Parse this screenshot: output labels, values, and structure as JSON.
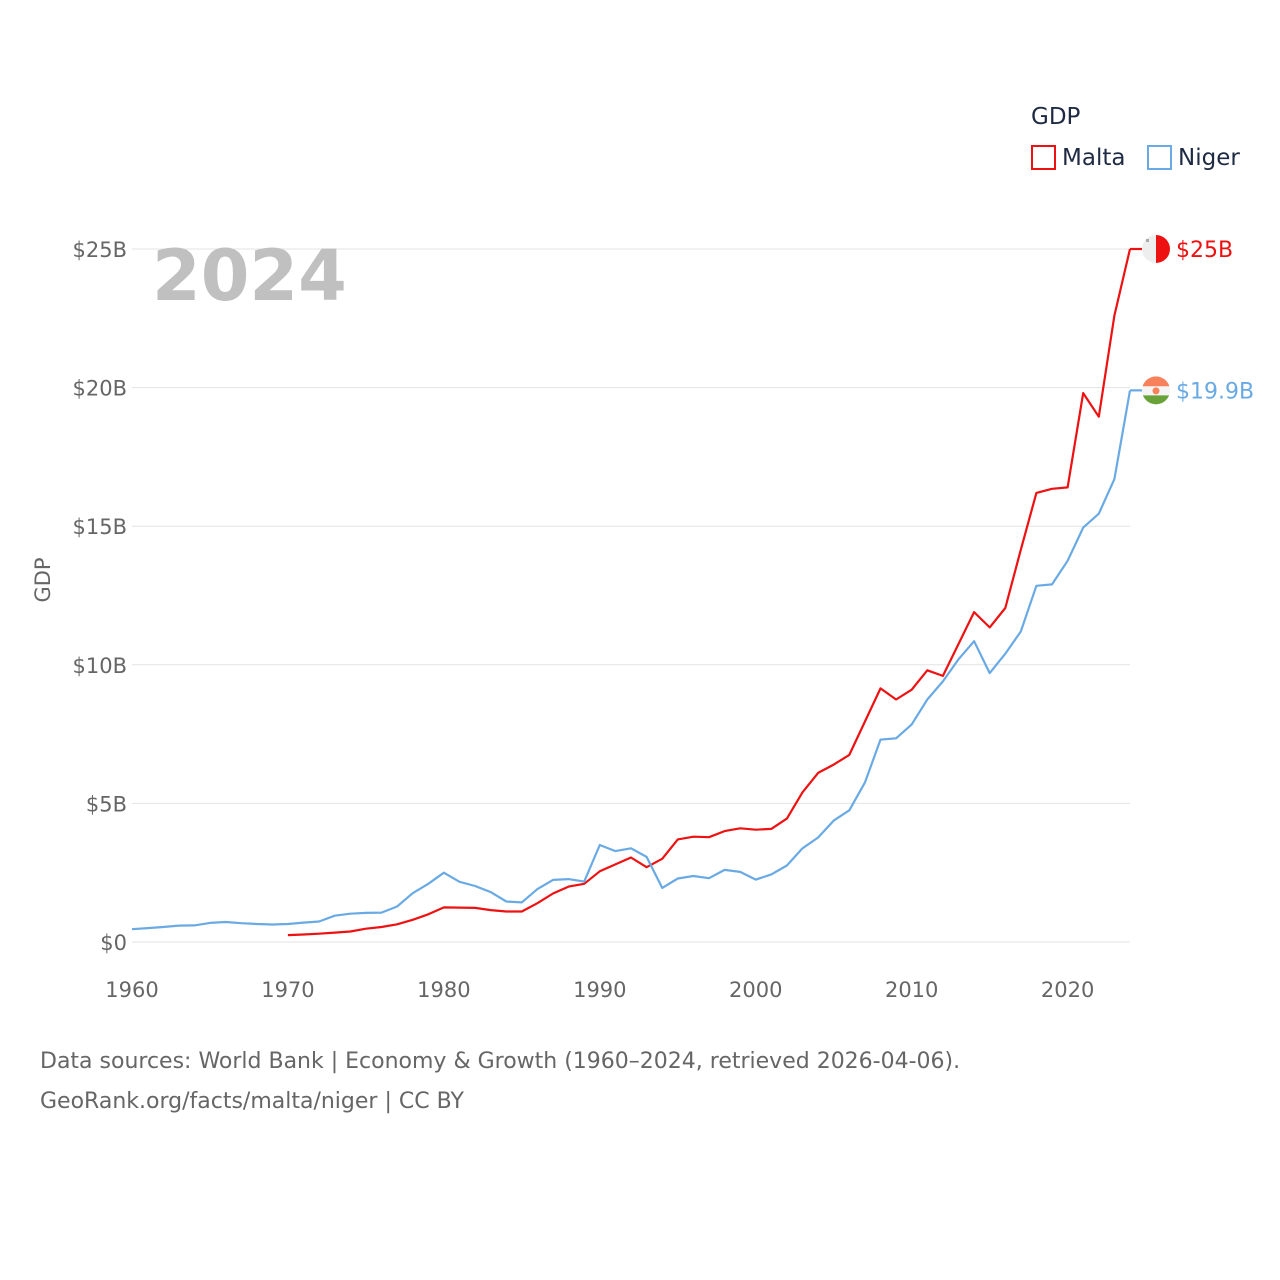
{
  "chart_data": {
    "type": "line",
    "title": "",
    "big_year_label": "2024",
    "ylabel": "GDP",
    "xlabel": "",
    "xlim": [
      1960,
      2024
    ],
    "ylim": [
      0,
      25
    ],
    "x_ticks": [
      {
        "value": 1960,
        "label": "1960"
      },
      {
        "value": 1970,
        "label": "1970"
      },
      {
        "value": 1980,
        "label": "1980"
      },
      {
        "value": 1990,
        "label": "1990"
      },
      {
        "value": 2000,
        "label": "2000"
      },
      {
        "value": 2010,
        "label": "2010"
      },
      {
        "value": 2020,
        "label": "2020"
      }
    ],
    "y_ticks": [
      {
        "value": 0,
        "label": "$0"
      },
      {
        "value": 5,
        "label": "$5B"
      },
      {
        "value": 10,
        "label": "$10B"
      },
      {
        "value": 15,
        "label": "$15B"
      },
      {
        "value": 20,
        "label": "$20B"
      },
      {
        "value": 25,
        "label": "$25B"
      }
    ],
    "grid": true,
    "legend": {
      "title": "GDP",
      "position": "top-right"
    },
    "series": [
      {
        "name": "Malta",
        "color": "#ee1111",
        "end_label": "$25B",
        "flag_icon": "malta-flag-icon",
        "x": [
          1970,
          1971,
          1972,
          1973,
          1974,
          1975,
          1976,
          1977,
          1978,
          1979,
          1980,
          1981,
          1982,
          1983,
          1984,
          1985,
          1986,
          1987,
          1988,
          1989,
          1990,
          1991,
          1992,
          1993,
          1994,
          1995,
          1996,
          1997,
          1998,
          1999,
          2000,
          2001,
          2002,
          2003,
          2004,
          2005,
          2006,
          2007,
          2008,
          2009,
          2010,
          2011,
          2012,
          2013,
          2014,
          2015,
          2016,
          2017,
          2018,
          2019,
          2020,
          2021,
          2022,
          2023,
          2024
        ],
        "values": [
          0.25,
          0.27,
          0.3,
          0.34,
          0.38,
          0.48,
          0.54,
          0.64,
          0.8,
          1.0,
          1.25,
          1.24,
          1.23,
          1.15,
          1.1,
          1.1,
          1.4,
          1.75,
          2.0,
          2.1,
          2.55,
          2.8,
          3.05,
          2.7,
          3.0,
          3.7,
          3.8,
          3.78,
          4.0,
          4.1,
          4.05,
          4.08,
          4.45,
          5.4,
          6.1,
          6.4,
          6.75,
          7.95,
          9.15,
          8.75,
          9.1,
          9.8,
          9.6,
          10.75,
          11.9,
          11.35,
          12.05,
          14.15,
          16.2,
          16.35,
          16.4,
          19.8,
          18.95,
          22.6,
          25.0
        ]
      },
      {
        "name": "Niger",
        "color": "#6aaae4",
        "end_label": "$19.9B",
        "flag_icon": "niger-flag-icon",
        "x": [
          1960,
          1961,
          1962,
          1963,
          1964,
          1965,
          1966,
          1967,
          1968,
          1969,
          1970,
          1971,
          1972,
          1973,
          1974,
          1975,
          1976,
          1977,
          1978,
          1979,
          1980,
          1981,
          1982,
          1983,
          1984,
          1985,
          1986,
          1987,
          1988,
          1989,
          1990,
          1991,
          1992,
          1993,
          1994,
          1995,
          1996,
          1997,
          1998,
          1999,
          2000,
          2001,
          2002,
          2003,
          2004,
          2005,
          2006,
          2007,
          2008,
          2009,
          2010,
          2011,
          2012,
          2013,
          2014,
          2015,
          2016,
          2017,
          2018,
          2019,
          2020,
          2021,
          2022,
          2023,
          2024
        ],
        "values": [
          0.46,
          0.5,
          0.54,
          0.59,
          0.6,
          0.69,
          0.72,
          0.68,
          0.65,
          0.63,
          0.65,
          0.7,
          0.74,
          0.95,
          1.02,
          1.05,
          1.06,
          1.28,
          1.76,
          2.1,
          2.5,
          2.17,
          2.02,
          1.8,
          1.46,
          1.43,
          1.91,
          2.24,
          2.27,
          2.18,
          3.5,
          3.28,
          3.38,
          3.07,
          1.95,
          2.29,
          2.38,
          2.3,
          2.6,
          2.53,
          2.25,
          2.44,
          2.76,
          3.38,
          3.77,
          4.38,
          4.75,
          5.75,
          7.3,
          7.35,
          7.85,
          8.75,
          9.4,
          10.2,
          10.85,
          9.7,
          10.4,
          11.2,
          12.85,
          12.9,
          13.75,
          14.95,
          15.45,
          16.7,
          19.9
        ]
      }
    ]
  },
  "source": {
    "line1": "Data sources: World Bank | Economy & Growth (1960–2024, retrieved 2026-04-06).",
    "line2": "GeoRank.org/facts/malta/niger | CC BY"
  }
}
